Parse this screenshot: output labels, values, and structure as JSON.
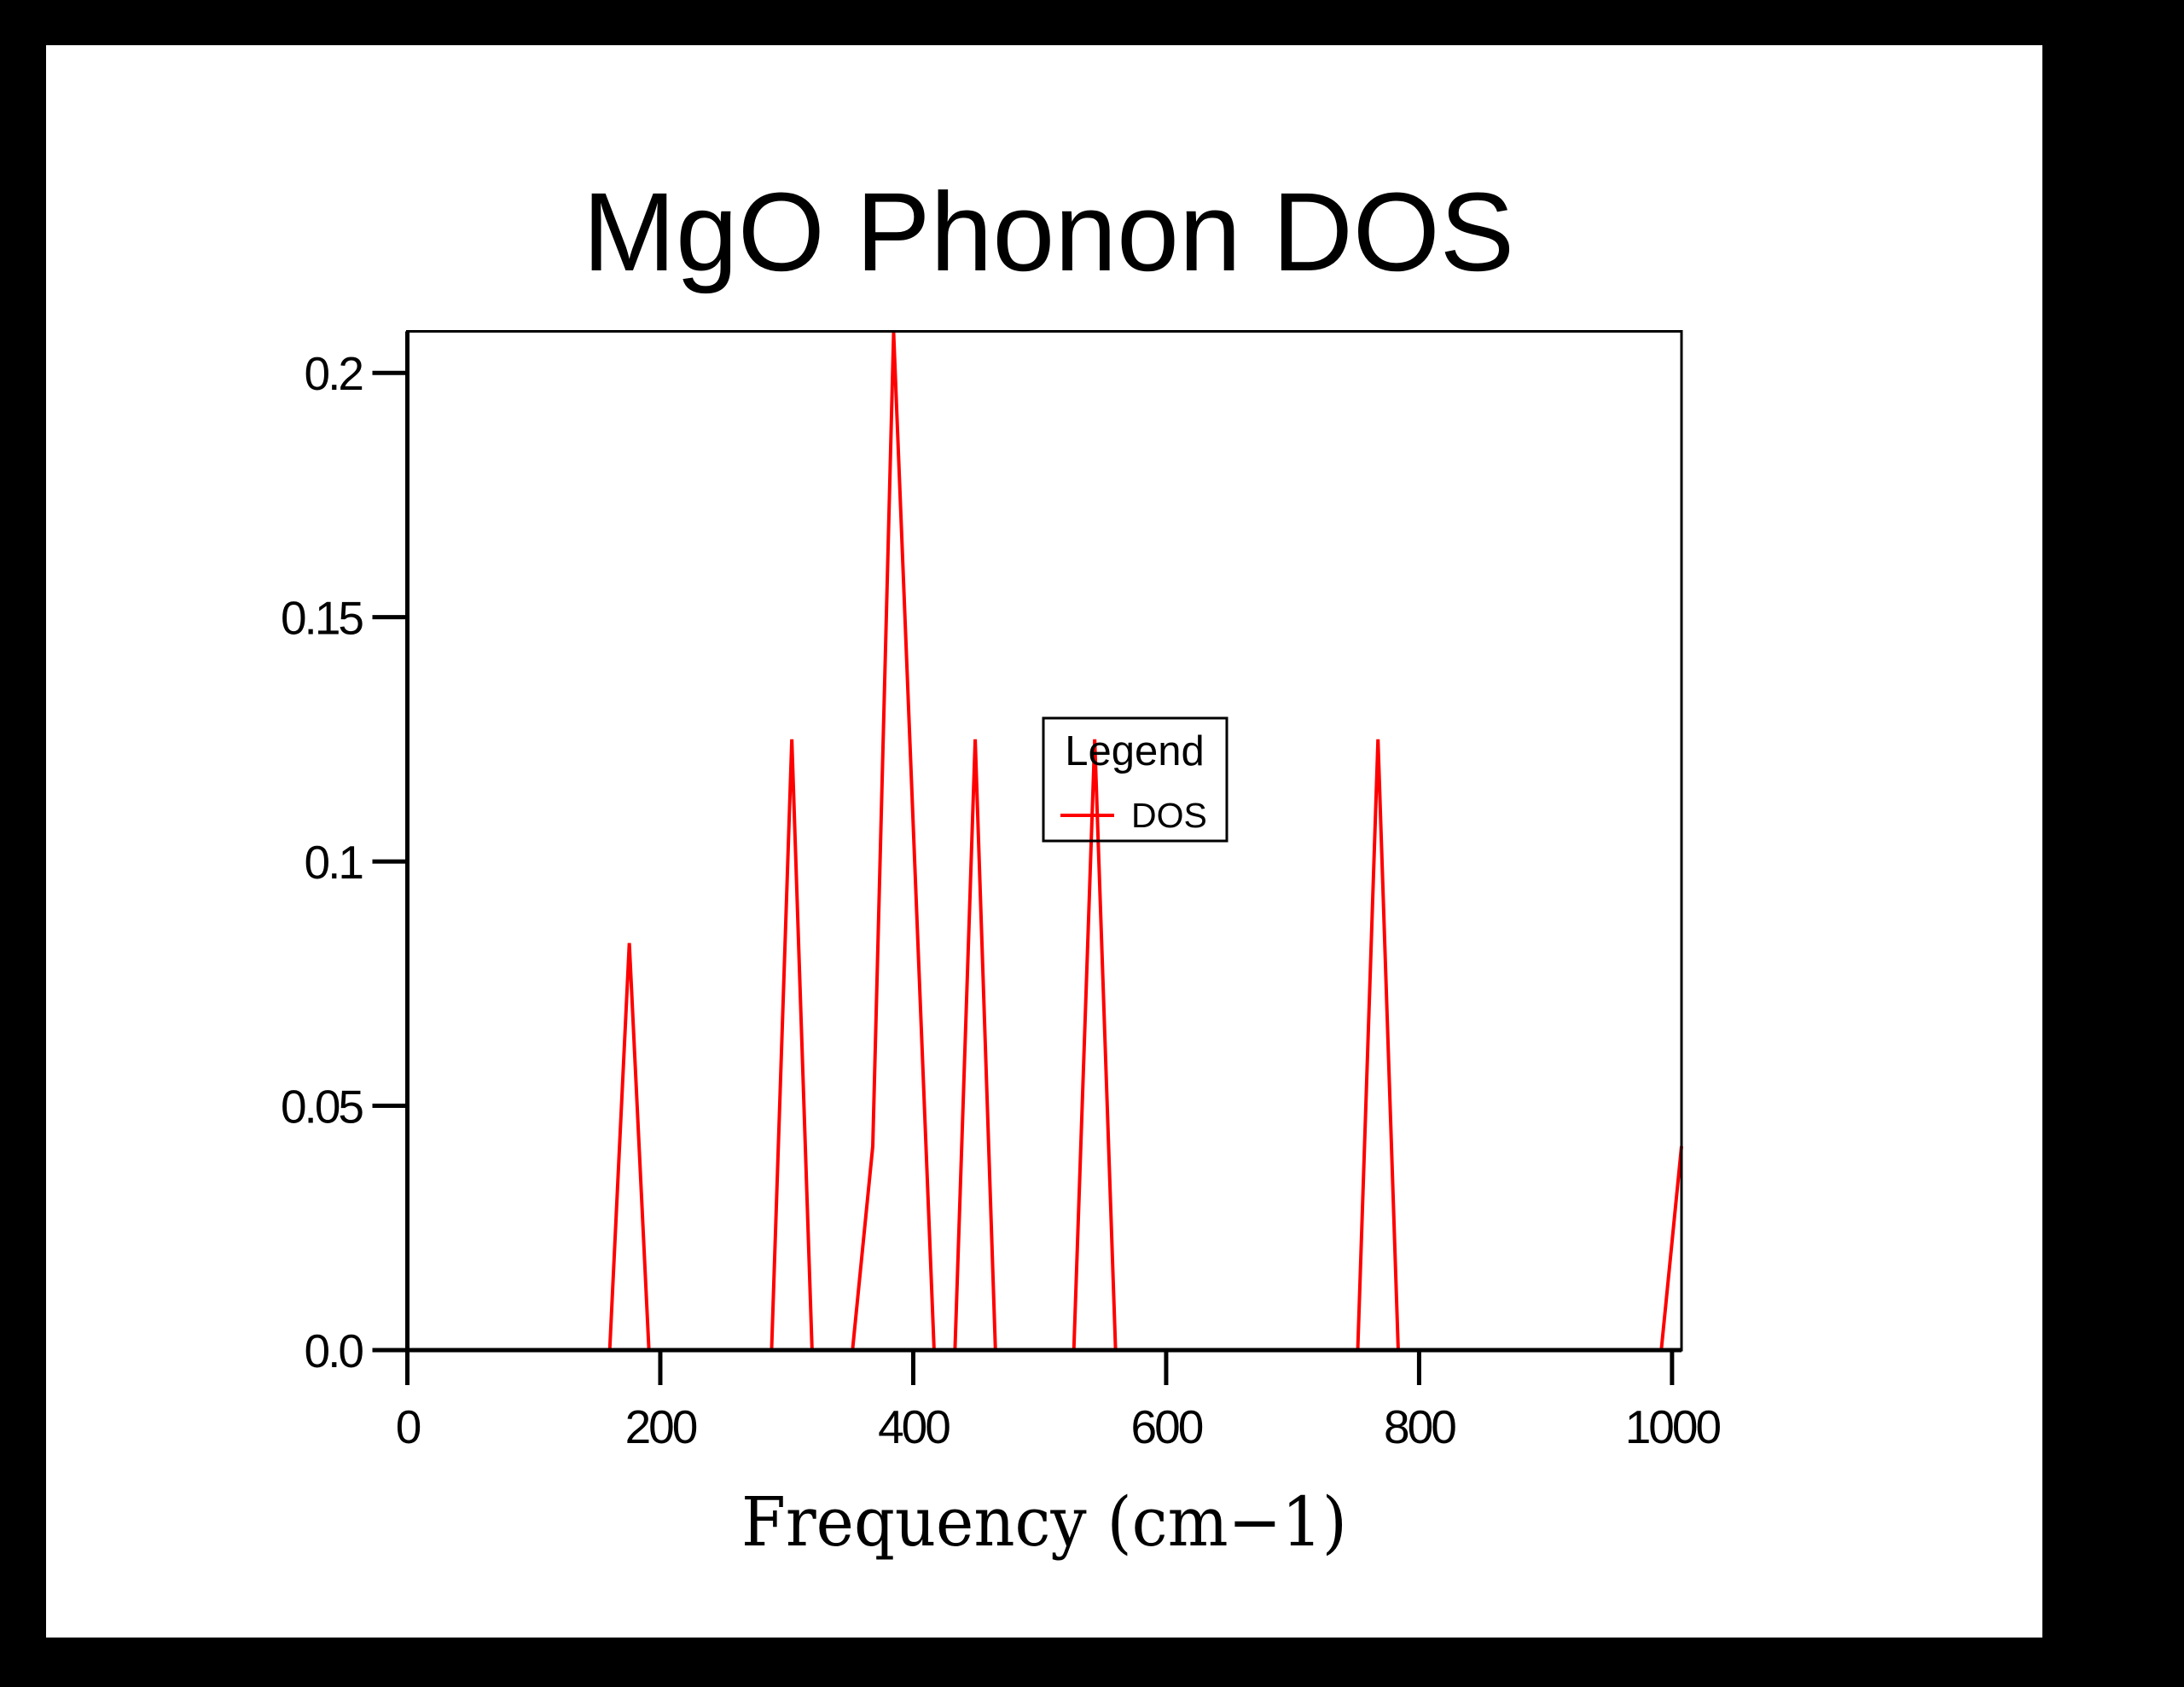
{
  "title": "MgO Phonon DOS",
  "colors": {
    "background": "#000000",
    "canvas": "#ffffff",
    "axis": "#000000",
    "line": "#ff0000"
  },
  "chart_data": {
    "type": "line",
    "title": "MgO Phonon DOS",
    "xlabel": "Frequency (cm−1)",
    "ylabel": "",
    "xlim": [
      0,
      1007.5
    ],
    "ylim": [
      0,
      0.2085
    ],
    "grid": false,
    "x_ticks": [
      "0",
      "200",
      "400",
      "600",
      "800",
      "1000"
    ],
    "x_tick_values": [
      0,
      200,
      400,
      600,
      800,
      1000
    ],
    "y_ticks": [
      "0.2",
      "0.15",
      "0.1",
      "0.05",
      "0.0"
    ],
    "y_tick_values": [
      0.2,
      0.15,
      0.1,
      0.05,
      0.0
    ],
    "legend": {
      "title": "Legend",
      "position": "center",
      "entries": [
        {
          "label": "DOS",
          "color": "#ff0000"
        }
      ]
    },
    "series": [
      {
        "name": "DOS",
        "color": "#ff0000",
        "points": [
          [
            0,
            0
          ],
          [
            160,
            0
          ],
          [
            175.5,
            0.0833
          ],
          [
            191,
            0
          ],
          [
            288,
            0
          ],
          [
            304,
            0.125
          ],
          [
            320,
            0
          ],
          [
            352,
            0
          ],
          [
            368,
            0.0417
          ],
          [
            384.5,
            0.2083
          ],
          [
            416.5,
            0
          ],
          [
            433,
            0
          ],
          [
            449,
            0.125
          ],
          [
            465,
            0
          ],
          [
            527,
            0
          ],
          [
            543.5,
            0.125
          ],
          [
            560,
            0
          ],
          [
            751.5,
            0
          ],
          [
            767.5,
            0.125
          ],
          [
            783.5,
            0
          ],
          [
            991.5,
            0
          ],
          [
            1007.5,
            0.0417
          ]
        ]
      }
    ]
  }
}
